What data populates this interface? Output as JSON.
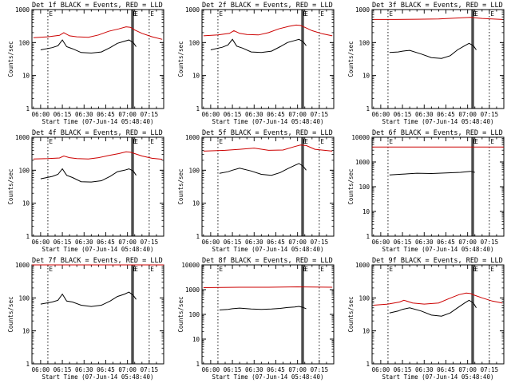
{
  "chart_data": [
    {
      "type": "line",
      "title": "Det 1f BLACK = Events, RED = LLD",
      "xlabel": "Start Time (07-Jun-14 05:48:40)",
      "ylabel": "Counts/sec",
      "ylog": true,
      "xlim": [
        "05:54",
        "07:25"
      ],
      "ylim": [
        1,
        1000
      ],
      "xticks": [
        "06:00",
        "06:15",
        "06:30",
        "06:45",
        "07:00",
        "07:15"
      ],
      "yticks": [
        "1",
        "10",
        "100",
        "1000"
      ],
      "markers": [
        "06:05",
        "07:03",
        "07:04",
        "07:15"
      ],
      "marker_label": "E",
      "series": [
        {
          "color": "#cc0000",
          "x": [
            "05:55",
            "06:05",
            "06:13",
            "06:16",
            "06:20",
            "06:25",
            "06:33",
            "06:40",
            "06:47",
            "06:54",
            "06:59",
            "07:02",
            "07:05",
            "07:10",
            "07:17",
            "07:24"
          ],
          "values": [
            140,
            150,
            165,
            200,
            160,
            150,
            145,
            170,
            220,
            260,
            300,
            290,
            240,
            190,
            150,
            125
          ]
        },
        {
          "color": "#000000",
          "x": [
            "06:00",
            "06:08",
            "06:12",
            "06:15",
            "06:18",
            "06:22",
            "06:28",
            "06:35",
            "06:42",
            "06:48",
            "06:53",
            "06:58",
            "07:01",
            "07:04",
            "07:06"
          ],
          "values": [
            60,
            70,
            80,
            120,
            75,
            65,
            50,
            48,
            52,
            70,
            95,
            110,
            120,
            100,
            75
          ]
        }
      ]
    },
    {
      "type": "line",
      "title": "Det 2f BLACK = Events, RED = LLD",
      "xlabel": "Start Time (07-Jun-14 05:48:40)",
      "ylabel": "Counts/sec",
      "ylog": true,
      "xlim": [
        "05:54",
        "07:25"
      ],
      "ylim": [
        1,
        1000
      ],
      "xticks": [
        "06:00",
        "06:15",
        "06:30",
        "06:45",
        "07:00",
        "07:15"
      ],
      "yticks": [
        "1",
        "10",
        "100",
        "1000"
      ],
      "markers": [
        "06:05",
        "07:03",
        "07:04",
        "07:15"
      ],
      "marker_label": "E",
      "series": [
        {
          "color": "#cc0000",
          "x": [
            "05:55",
            "06:05",
            "06:13",
            "06:16",
            "06:20",
            "06:25",
            "06:33",
            "06:40",
            "06:47",
            "06:54",
            "06:59",
            "07:02",
            "07:05",
            "07:10",
            "07:17",
            "07:24"
          ],
          "values": [
            160,
            170,
            190,
            230,
            190,
            175,
            170,
            200,
            260,
            310,
            340,
            330,
            290,
            230,
            185,
            160
          ]
        },
        {
          "color": "#000000",
          "x": [
            "06:00",
            "06:08",
            "06:12",
            "06:15",
            "06:18",
            "06:22",
            "06:28",
            "06:35",
            "06:42",
            "06:48",
            "06:53",
            "06:58",
            "07:01",
            "07:04",
            "07:06"
          ],
          "values": [
            60,
            72,
            85,
            125,
            78,
            68,
            52,
            50,
            55,
            75,
            100,
            115,
            125,
            105,
            80
          ]
        }
      ]
    },
    {
      "type": "line",
      "title": "Det 3f BLACK = Events, RED = LLD",
      "xlabel": "Start Time (07-Jun-14 05:48:40)",
      "ylabel": "Counts/sec",
      "ylog": true,
      "xlim": [
        "05:54",
        "07:25"
      ],
      "ylim": [
        1,
        1000
      ],
      "xticks": [
        "06:00",
        "06:15",
        "06:30",
        "06:45",
        "07:00",
        "07:15"
      ],
      "yticks": [
        "1",
        "10",
        "100",
        "1000"
      ],
      "markers": [
        "06:05",
        "07:03",
        "07:04",
        "07:15"
      ],
      "marker_label": "E",
      "series": [
        {
          "color": "#cc0000",
          "x": [
            "05:55",
            "06:10",
            "06:25",
            "06:40",
            "06:55",
            "07:02",
            "07:10",
            "07:24"
          ],
          "values": [
            500,
            500,
            510,
            520,
            560,
            580,
            540,
            500
          ]
        },
        {
          "color": "#000000",
          "x": [
            "06:06",
            "06:12",
            "06:15",
            "06:20",
            "06:28",
            "06:35",
            "06:42",
            "06:48",
            "06:53",
            "06:58",
            "07:01",
            "07:04",
            "07:06"
          ],
          "values": [
            50,
            52,
            55,
            58,
            45,
            35,
            33,
            40,
            60,
            80,
            95,
            80,
            60
          ]
        }
      ]
    },
    {
      "type": "line",
      "title": "Det 4f BLACK = Events, RED = LLD",
      "xlabel": "Start Time (07-Jun-14 05:48:40)",
      "ylabel": "Counts/sec",
      "ylog": true,
      "xlim": [
        "05:54",
        "07:25"
      ],
      "ylim": [
        1,
        1000
      ],
      "xticks": [
        "06:00",
        "06:15",
        "06:30",
        "06:45",
        "07:00",
        "07:15"
      ],
      "yticks": [
        "1",
        "10",
        "100",
        "1000"
      ],
      "markers": [
        "06:05",
        "07:03",
        "07:04",
        "07:15"
      ],
      "marker_label": "E",
      "series": [
        {
          "color": "#cc0000",
          "x": [
            "05:55",
            "06:05",
            "06:13",
            "06:16",
            "06:20",
            "06:25",
            "06:33",
            "06:40",
            "06:47",
            "06:54",
            "06:59",
            "07:02",
            "07:05",
            "07:10",
            "07:17",
            "07:24"
          ],
          "values": [
            220,
            225,
            235,
            270,
            240,
            225,
            220,
            240,
            280,
            320,
            360,
            350,
            320,
            270,
            230,
            215
          ]
        },
        {
          "color": "#000000",
          "x": [
            "06:00",
            "06:08",
            "06:12",
            "06:15",
            "06:18",
            "06:22",
            "06:28",
            "06:35",
            "06:42",
            "06:48",
            "06:53",
            "06:58",
            "07:01",
            "07:04",
            "07:06"
          ],
          "values": [
            55,
            65,
            75,
            110,
            70,
            60,
            45,
            44,
            48,
            65,
            90,
            100,
            110,
            95,
            70
          ]
        }
      ]
    },
    {
      "type": "line",
      "title": "Det 5f BLACK = Events, RED = LLD",
      "xlabel": "Start Time (07-Jun-14 05:48:40)",
      "ylabel": "Counts/sec",
      "ylog": true,
      "xlim": [
        "05:54",
        "07:25"
      ],
      "ylim": [
        1,
        1000
      ],
      "xticks": [
        "06:00",
        "06:15",
        "06:30",
        "06:45",
        "07:00",
        "07:15"
      ],
      "yticks": [
        "1",
        "10",
        "100",
        "1000"
      ],
      "markers": [
        "06:05",
        "07:03",
        "07:04",
        "07:15"
      ],
      "marker_label": "E",
      "series": [
        {
          "color": "#cc0000",
          "x": [
            "05:55",
            "06:10",
            "06:20",
            "06:30",
            "06:40",
            "06:50",
            "06:58",
            "07:02",
            "07:06",
            "07:12",
            "07:24"
          ],
          "values": [
            380,
            400,
            430,
            470,
            400,
            410,
            520,
            580,
            560,
            430,
            380
          ]
        },
        {
          "color": "#000000",
          "x": [
            "06:06",
            "06:12",
            "06:15",
            "06:20",
            "06:28",
            "06:35",
            "06:42",
            "06:48",
            "06:53",
            "06:58",
            "07:01",
            "07:04",
            "07:06"
          ],
          "values": [
            80,
            90,
            100,
            115,
            95,
            75,
            70,
            85,
            110,
            140,
            160,
            130,
            100
          ]
        }
      ]
    },
    {
      "type": "line",
      "title": "Det 6f BLACK = Events, RED = LLD",
      "xlabel": "Start Time (07-Jun-14 05:48:40)",
      "ylabel": "Counts/sec",
      "ylog": true,
      "xlim": [
        "05:54",
        "07:25"
      ],
      "ylim": [
        1,
        10000
      ],
      "xticks": [
        "06:00",
        "06:15",
        "06:30",
        "06:45",
        "07:00",
        "07:15"
      ],
      "yticks": [
        "1",
        "10",
        "100",
        "1000",
        "10000"
      ],
      "markers": [
        "06:05",
        "07:03",
        "07:04",
        "07:15"
      ],
      "marker_label": "E",
      "series": [
        {
          "color": "#cc0000",
          "x": [
            "05:54",
            "07:25"
          ],
          "values": [
            4000,
            4000
          ]
        },
        {
          "color": "#000000",
          "x": [
            "06:06",
            "06:15",
            "06:25",
            "06:35",
            "06:45",
            "06:55",
            "07:02",
            "07:05"
          ],
          "values": [
            300,
            320,
            350,
            340,
            360,
            380,
            420,
            380
          ]
        }
      ]
    },
    {
      "type": "line",
      "title": "Det 7f BLACK = Events, RED = LLD",
      "xlabel": "Start Time (07-Jun-14 05:48:40)",
      "ylabel": "Counts/sec",
      "ylog": true,
      "xlim": [
        "05:54",
        "07:25"
      ],
      "ylim": [
        1,
        1000
      ],
      "xticks": [
        "06:00",
        "06:15",
        "06:30",
        "06:45",
        "07:00",
        "07:15"
      ],
      "yticks": [
        "1",
        "10",
        "100",
        "1000"
      ],
      "markers": [
        "06:05",
        "07:03",
        "07:04",
        "07:15"
      ],
      "marker_label": "E",
      "series": [
        {
          "color": "#cc0000",
          "x": [
            "05:54",
            "06:20",
            "06:40",
            "07:00",
            "07:25"
          ],
          "values": [
            1000,
            1000,
            1000,
            1000,
            1000
          ]
        },
        {
          "color": "#000000",
          "x": [
            "06:00",
            "06:08",
            "06:12",
            "06:15",
            "06:18",
            "06:22",
            "06:28",
            "06:35",
            "06:42",
            "06:48",
            "06:53",
            "06:58",
            "07:01",
            "07:04",
            "07:06"
          ],
          "values": [
            65,
            75,
            85,
            130,
            80,
            75,
            60,
            55,
            60,
            80,
            110,
            130,
            150,
            120,
            90
          ]
        }
      ]
    },
    {
      "type": "line",
      "title": "Det 8f BLACK = Events, RED = LLD",
      "xlabel": "Start Time (07-Jun-14 05:48:40)",
      "ylabel": "Counts/sec",
      "ylog": true,
      "xlim": [
        "05:54",
        "07:25"
      ],
      "ylim": [
        1,
        10000
      ],
      "xticks": [
        "06:00",
        "06:15",
        "06:30",
        "06:45",
        "07:00",
        "07:15"
      ],
      "yticks": [
        "1",
        "10",
        "100",
        "1000",
        "10000"
      ],
      "markers": [
        "06:05",
        "07:03",
        "07:04",
        "07:15"
      ],
      "marker_label": "E",
      "series": [
        {
          "color": "#cc0000",
          "x": [
            "05:55",
            "06:20",
            "06:40",
            "07:00",
            "07:24"
          ],
          "values": [
            1200,
            1250,
            1250,
            1300,
            1250
          ]
        },
        {
          "color": "#000000",
          "x": [
            "06:06",
            "06:12",
            "06:15",
            "06:20",
            "06:28",
            "06:35",
            "06:42",
            "06:48",
            "06:53",
            "06:58",
            "07:01",
            "07:04",
            "07:06"
          ],
          "values": [
            150,
            160,
            170,
            180,
            165,
            160,
            165,
            175,
            190,
            200,
            210,
            190,
            170
          ]
        }
      ]
    },
    {
      "type": "line",
      "title": "Det 9f BLACK = Events, RED = LLD",
      "xlabel": "Start Time (07-Jun-14 05:48:40)",
      "ylabel": "Counts/sec",
      "ylog": true,
      "xlim": [
        "05:54",
        "07:25"
      ],
      "ylim": [
        1,
        1000
      ],
      "xticks": [
        "06:00",
        "06:15",
        "06:30",
        "06:45",
        "07:00",
        "07:15"
      ],
      "yticks": [
        "1",
        "10",
        "100",
        "1000"
      ],
      "markers": [
        "06:05",
        "07:03",
        "07:04",
        "07:15"
      ],
      "marker_label": "E",
      "series": [
        {
          "color": "#cc0000",
          "x": [
            "05:55",
            "06:05",
            "06:13",
            "06:16",
            "06:22",
            "06:30",
            "06:40",
            "06:47",
            "06:54",
            "06:59",
            "07:02",
            "07:05",
            "07:10",
            "07:17",
            "07:24"
          ],
          "values": [
            60,
            65,
            75,
            85,
            70,
            65,
            70,
            95,
            125,
            140,
            135,
            120,
            100,
            80,
            70
          ]
        },
        {
          "color": "#000000",
          "x": [
            "06:06",
            "06:12",
            "06:15",
            "06:20",
            "06:28",
            "06:35",
            "06:42",
            "06:48",
            "06:53",
            "06:58",
            "07:01",
            "07:04",
            "07:06"
          ],
          "values": [
            35,
            40,
            45,
            50,
            40,
            30,
            28,
            35,
            50,
            70,
            85,
            70,
            50
          ]
        }
      ]
    }
  ]
}
